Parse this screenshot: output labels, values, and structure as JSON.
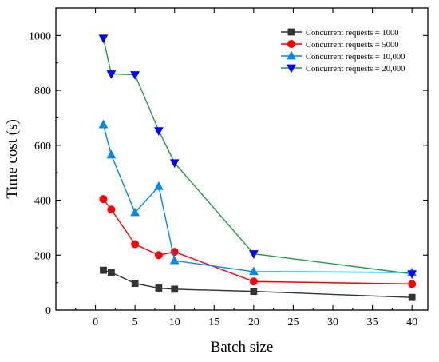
{
  "chart_data": {
    "type": "line",
    "xlabel": "Batch size",
    "ylabel": "Time cost (s)",
    "xlim": [
      -5,
      42
    ],
    "ylim": [
      0,
      1100
    ],
    "xticks": [
      0,
      5,
      10,
      15,
      20,
      25,
      30,
      35,
      40
    ],
    "yticks": [
      0,
      200,
      400,
      600,
      800,
      1000
    ],
    "grid": false,
    "legend_position": "top-right",
    "series": [
      {
        "name": "Concurrent requests = 1000",
        "color": "#333333",
        "marker": "square-icon",
        "x": [
          1,
          2,
          5,
          8,
          10,
          20,
          40
        ],
        "y": [
          145,
          137,
          97,
          80,
          76,
          68,
          46
        ]
      },
      {
        "name": "Concurrent requests = 5000",
        "color": "#ff0000",
        "marker": "circle-icon",
        "x": [
          1,
          2,
          5,
          8,
          10,
          20,
          40
        ],
        "y": [
          404,
          366,
          240,
          200,
          212,
          104,
          95
        ]
      },
      {
        "name": "Concurrent requests = 10,000",
        "color": "#0088ee",
        "marker": "triangle-up-icon",
        "x": [
          1,
          2,
          5,
          8,
          10,
          20,
          40
        ],
        "y": [
          675,
          565,
          355,
          450,
          180,
          140,
          137
        ]
      },
      {
        "name": "Concurrent requests = 20,000",
        "color": "#0000ff",
        "line_color": "#229944",
        "marker": "triangle-down-icon",
        "x": [
          1,
          2,
          5,
          8,
          10,
          20,
          40
        ],
        "y": [
          990,
          860,
          857,
          653,
          536,
          205,
          132
        ]
      }
    ]
  }
}
